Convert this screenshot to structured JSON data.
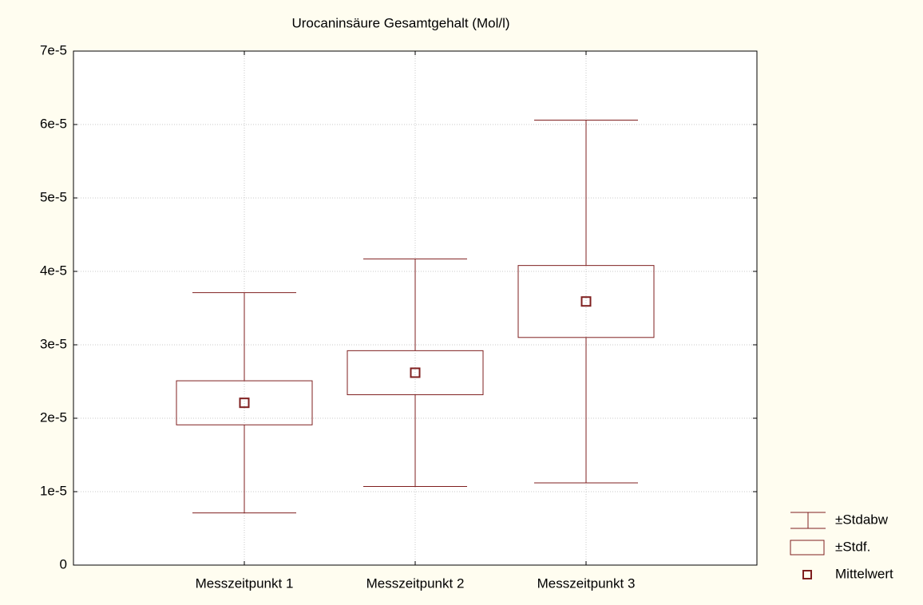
{
  "chart_data": {
    "type": "box",
    "title": "Urocaninsäure Gesamtgehalt (Mol/l)",
    "categories": [
      "Messzeitpunkt 1",
      "Messzeitpunkt 2",
      "Messzeitpunkt 3"
    ],
    "series": [
      {
        "name": "±Stdabw",
        "color": "#7f1f1f",
        "values": [
          1.5e-05,
          1.55e-05,
          2.47e-05
        ]
      },
      {
        "name": "±Stdf.",
        "color": "#7f1f1f",
        "values": [
          3e-06,
          3e-06,
          4.9e-06
        ]
      },
      {
        "name": "Mittelwert",
        "color": "#7f1f1f",
        "values": [
          2.21e-05,
          2.62e-05,
          3.59e-05
        ]
      }
    ],
    "ylim": [
      0,
      7e-05
    ],
    "yticks": [
      0,
      {
        "value": 1e-05,
        "label": "1e-5"
      },
      {
        "value": 2e-05,
        "label": "2e-5"
      },
      {
        "value": 3e-05,
        "label": "3e-5"
      },
      {
        "value": 4e-05,
        "label": "4e-5"
      },
      {
        "value": 5e-05,
        "label": "5e-5"
      },
      {
        "value": 6e-05,
        "label": "6e-5"
      },
      {
        "value": 7e-05,
        "label": "7e-5"
      }
    ],
    "grid": true,
    "legend": "right"
  }
}
